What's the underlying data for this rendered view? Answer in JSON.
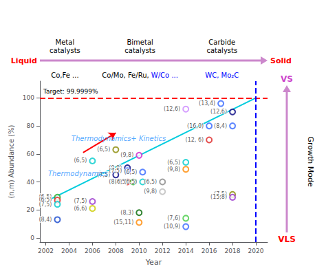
{
  "chart_data": {
    "type": "scatter",
    "xlabel": "Year",
    "ylabel": "(n,m) Abundance (%)",
    "xlim": [
      2001.5,
      2021.0
    ],
    "ylim": [
      -3,
      112
    ],
    "xticks": [
      2002,
      2004,
      2006,
      2008,
      2010,
      2012,
      2014,
      2016,
      2018,
      2020
    ],
    "yticks": [
      0,
      20,
      40,
      60,
      80,
      100
    ],
    "grid": false,
    "series": [
      {
        "type": "line",
        "color": "#00ccdd",
        "line_style": "solid",
        "x": [
          2002.5,
          2020.0
        ],
        "values": [
          28,
          100
        ]
      },
      {
        "type": "scatter",
        "marker": "open_circle",
        "x": [
          2003,
          2003,
          2003,
          2003,
          2006,
          2006,
          2006,
          2008,
          2008,
          2009,
          2009,
          2009,
          2009.5,
          2010,
          2010.3,
          2010.3,
          2010,
          2010,
          2012,
          2012,
          2014,
          2014,
          2014,
          2014,
          2014,
          2016,
          2016,
          2017,
          2018,
          2018,
          2018,
          2018
        ],
        "values": [
          13,
          29,
          27,
          24,
          55,
          26,
          21,
          63,
          45,
          50,
          48,
          40,
          40,
          59,
          47,
          40,
          18,
          11,
          40,
          33,
          92,
          54,
          49,
          14,
          8,
          80,
          70,
          96,
          90,
          80,
          31,
          29
        ],
        "colors": [
          "#1144cc",
          "#22aa22",
          "#dd2222",
          "#00cccc",
          "#00cccc",
          "#9933cc",
          "#cccc00",
          "#888800",
          "#000080",
          "#000080",
          "#3366ff",
          "#dd2222",
          "#22aa22",
          "#cc22cc",
          "#3366ff",
          "#00cccc",
          "#006600",
          "#ff8800",
          "#888888",
          "#bbbbbb",
          "#cc88ff",
          "#00cccc",
          "#ff8800",
          "#44cc44",
          "#3366ff",
          "#3366ff",
          "#dd2222",
          "#3366ff",
          "#000080",
          "#3366ff",
          "#888800",
          "#9933cc"
        ],
        "labels": [
          "(8,4)",
          "(6,5)",
          "(6,5)",
          "(7,5)",
          "(6,5)",
          "(7,5)",
          "(6,6)",
          "(6,5)",
          "(7,5)",
          "(9,9)",
          "(7,5)",
          "(8,4)",
          "(6,5)",
          "(9,8)",
          "(6,5)",
          "(6,5)",
          "(8,3)",
          "(15,11)",
          "(6,5)",
          "(9,8)",
          "(12,6)",
          "(6,5)",
          "(9,8)",
          "(7,6)",
          "(10,9)",
          "(16,0)",
          "(12, 6)",
          "(13,4)",
          "(12,6)",
          "(8,4)",
          "(7,5)",
          "(15,8)"
        ]
      }
    ],
    "reference_lines": [
      {
        "axis": "y",
        "value": 100,
        "color": "red",
        "line_style": "dashed",
        "label": "Target: 99.9999%"
      },
      {
        "axis": "x",
        "value": 2020,
        "color": "blue",
        "line_style": "dashed"
      }
    ],
    "annotations": [
      {
        "text": "Thermodynamics",
        "x": 2002.2,
        "y": 46,
        "color": "#1E90FF"
      },
      {
        "text": "Thermodynamics+ Kinetics",
        "x": 2004.2,
        "y": 71,
        "color": "#1E90FF"
      }
    ],
    "arrows": [
      {
        "from": [
          2005.2,
          61
        ],
        "to": [
          2008.0,
          75
        ],
        "color": "red"
      }
    ],
    "catalyst_axis": {
      "start": "Liquid",
      "end": "Solid",
      "label_color": "red",
      "color": "#cc88cc"
    },
    "catalysts": [
      {
        "name": "Metal\ncatalysts",
        "examples": [
          {
            "text": "Co,Fe ...",
            "color": "black"
          }
        ]
      },
      {
        "name": "Bimetal\ncatalysts",
        "examples": [
          {
            "text": "Co/Mo, Fe/Ru, ",
            "color": "black"
          },
          {
            "text": "W/Co ...",
            "color": "blue"
          }
        ]
      },
      {
        "name": "Carbide\ncatalysts",
        "examples": [
          {
            "text": "WC, Mo₂C",
            "color": "blue"
          }
        ]
      }
    ],
    "growth_mode": {
      "title": "Growth Mode",
      "top": "VS",
      "top_color": "#cc44cc",
      "bottom": "VLS",
      "bottom_color": "red",
      "color": "#cc88cc"
    }
  }
}
